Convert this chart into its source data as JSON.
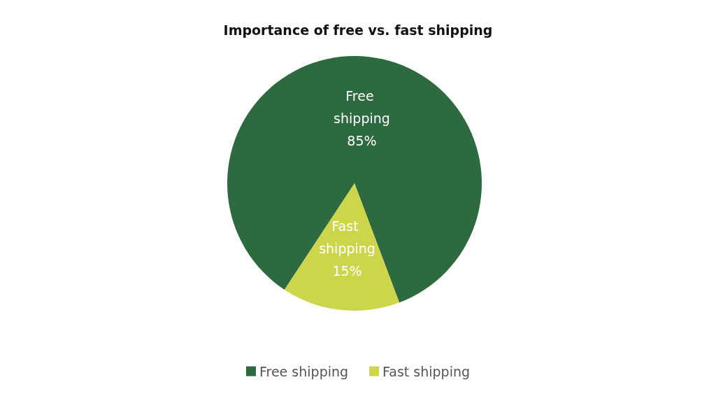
{
  "chart_data": {
    "type": "pie",
    "title": "Importance of free vs. fast shipping",
    "categories": [
      "Free shipping",
      "Fast shipping"
    ],
    "values": [
      85,
      15
    ],
    "value_labels": [
      "85%",
      "15%"
    ],
    "colors": [
      "#2d6a3f",
      "#cdd64a"
    ],
    "legend": "bottom"
  }
}
